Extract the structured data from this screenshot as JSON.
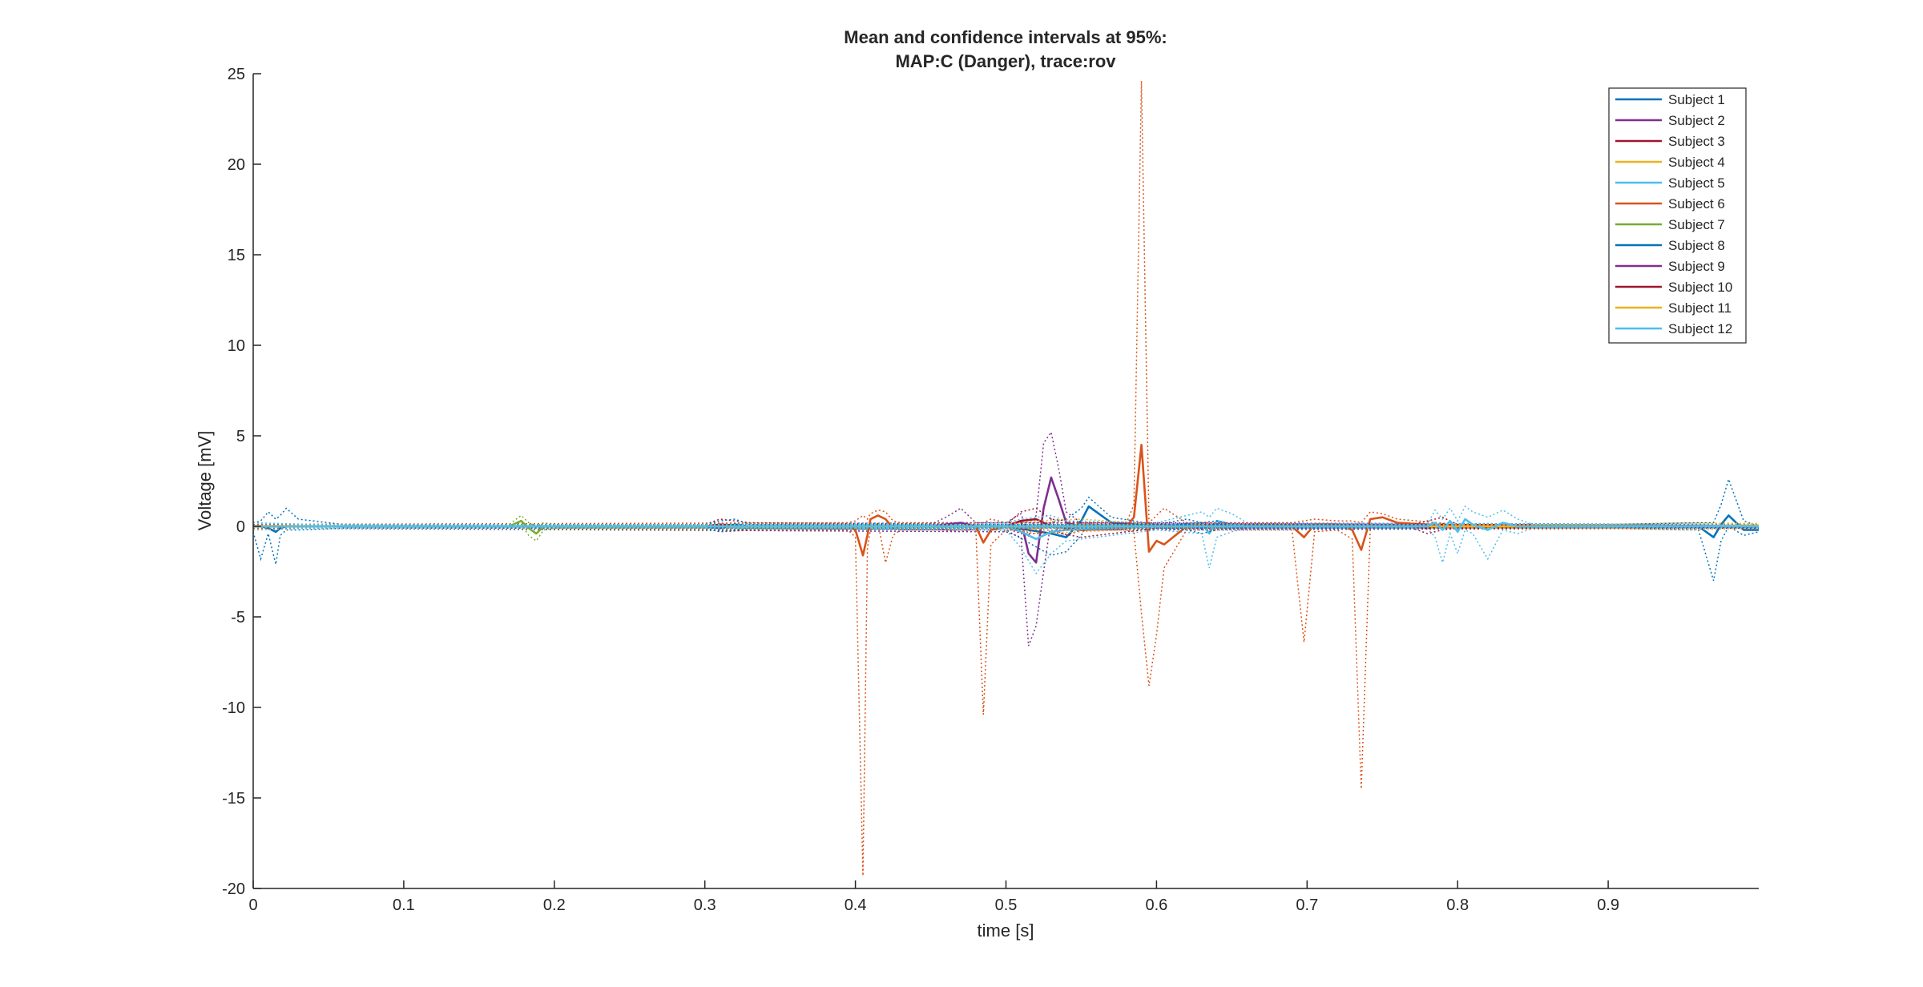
{
  "chart_data": {
    "type": "line",
    "title": "Mean and confidence intervals at 95%:",
    "subtitle": "MAP:C (Danger), trace:rov",
    "xlabel": "time [s]",
    "ylabel": "Voltage [mV]",
    "xlim": [
      0,
      1.0
    ],
    "ylim": [
      -20,
      25
    ],
    "xticks": [
      0,
      0.1,
      0.2,
      0.3,
      0.4,
      0.5,
      0.6,
      0.7,
      0.8,
      0.9
    ],
    "xtick_labels": [
      "0",
      "0.1",
      "0.2",
      "0.3",
      "0.4",
      "0.5",
      "0.6",
      "0.7",
      "0.8",
      "0.9"
    ],
    "yticks": [
      -20,
      -15,
      -10,
      -5,
      0,
      5,
      10,
      15,
      20,
      25
    ],
    "ytick_labels": [
      "-20",
      "-15",
      "-10",
      "-5",
      "0",
      "5",
      "10",
      "15",
      "20",
      "25"
    ],
    "grid": false,
    "legend_position": "top-right",
    "style_note": "solid lines = mean, dotted lines = 95% confidence bounds",
    "series": [
      {
        "name": "Subject 1",
        "color": "#0072BD",
        "x": [
          0,
          0.005,
          0.01,
          0.015,
          0.018,
          0.022,
          0.03,
          0.06,
          0.3,
          0.5,
          0.53,
          0.54,
          0.55,
          0.555,
          0.57,
          0.6,
          0.9,
          0.96,
          0.97,
          0.975,
          0.98,
          0.99,
          1.0
        ],
        "y": [
          0,
          0,
          -0.1,
          -0.3,
          -0.1,
          0,
          0,
          0,
          0,
          0,
          -0.4,
          -0.6,
          0.3,
          1.1,
          0.2,
          0,
          0,
          0,
          -0.6,
          0.1,
          0.6,
          -0.2,
          -0.2
        ],
        "upper": [
          0.2,
          0.3,
          0.8,
          0.4,
          0.6,
          1.0,
          0.4,
          0.1,
          0.1,
          0.2,
          0.2,
          0.4,
          1.0,
          1.6,
          0.5,
          0.1,
          0.1,
          0.2,
          0.2,
          1.2,
          2.6,
          0.3,
          0
        ],
        "lower": [
          -0.3,
          -1.8,
          -0.4,
          -2.1,
          -0.5,
          -0.2,
          -0.2,
          -0.1,
          -0.1,
          -0.2,
          -1.6,
          -1.4,
          -0.5,
          0.2,
          -0.2,
          -0.1,
          -0.1,
          -0.2,
          -3.0,
          -0.8,
          0,
          -0.5,
          -0.3
        ]
      },
      {
        "name": "Subject 2",
        "color": "#7E2F8E",
        "x": [
          0,
          0.5,
          0.51,
          0.515,
          0.52,
          0.525,
          0.53,
          0.535,
          0.54,
          0.55,
          1.0
        ],
        "y": [
          0,
          0,
          0.3,
          -1.5,
          -2.0,
          1.0,
          2.7,
          1.5,
          0.2,
          0,
          0
        ],
        "upper": [
          0.1,
          0.2,
          0.7,
          -0.5,
          0.6,
          4.6,
          5.2,
          3.2,
          0.8,
          0.2,
          0.1
        ],
        "lower": [
          -0.1,
          -0.3,
          -0.6,
          -6.6,
          -5.5,
          -2.5,
          0.4,
          -0.3,
          -0.5,
          -0.2,
          -0.1
        ]
      },
      {
        "name": "Subject 3",
        "color": "#A2142F",
        "x": [
          0,
          0.3,
          0.31,
          0.33,
          0.5,
          0.51,
          0.52,
          0.53,
          0.55,
          0.6,
          1.0
        ],
        "y": [
          0,
          0,
          0.1,
          0,
          0,
          0.3,
          0.4,
          0,
          -0.2,
          0,
          0
        ],
        "upper": [
          0.05,
          0.1,
          0.4,
          0.2,
          0.1,
          0.8,
          1.0,
          0.4,
          0.2,
          0.1,
          0.05
        ],
        "lower": [
          -0.05,
          -0.1,
          -0.3,
          -0.2,
          -0.1,
          -0.4,
          -0.4,
          -0.3,
          -0.6,
          -0.1,
          -0.05
        ]
      },
      {
        "name": "Subject 4",
        "color": "#EDB120",
        "x": [
          0,
          0.5,
          0.52,
          0.55,
          0.6,
          0.9,
          1.0
        ],
        "y": [
          0,
          0,
          -0.1,
          0.1,
          0,
          0,
          0.05
        ],
        "upper": [
          0.05,
          0.1,
          0.3,
          0.4,
          0.1,
          0.1,
          0.15
        ],
        "lower": [
          -0.05,
          -0.1,
          -0.4,
          -0.3,
          -0.1,
          -0.1,
          -0.05
        ]
      },
      {
        "name": "Subject 5",
        "color": "#4DBEEE",
        "x": [
          0,
          0.5,
          0.51,
          0.52,
          0.53,
          0.54,
          0.6,
          0.63,
          0.635,
          0.64,
          0.65,
          0.66,
          1.0
        ],
        "y": [
          0,
          0,
          -0.3,
          -0.7,
          -0.3,
          -0.2,
          0,
          0.2,
          -0.4,
          0.3,
          0.1,
          0,
          0
        ],
        "upper": [
          0.1,
          0.2,
          0.4,
          0.5,
          0.6,
          0.3,
          0.2,
          0.8,
          0.5,
          1.0,
          0.7,
          0.2,
          0.1
        ],
        "lower": [
          -0.1,
          -0.2,
          -1.2,
          -2.6,
          -1.5,
          -0.8,
          -0.2,
          -0.4,
          -2.3,
          -0.6,
          -0.3,
          -0.1,
          -0.1
        ]
      },
      {
        "name": "Subject 6",
        "color": "#D95319",
        "x": [
          0,
          0.395,
          0.4,
          0.405,
          0.408,
          0.41,
          0.415,
          0.42,
          0.425,
          0.43,
          0.48,
          0.485,
          0.49,
          0.5,
          0.58,
          0.585,
          0.59,
          0.595,
          0.6,
          0.605,
          0.62,
          0.69,
          0.698,
          0.705,
          0.72,
          0.73,
          0.736,
          0.742,
          0.75,
          0.76,
          0.8,
          1.0
        ],
        "y": [
          0,
          0,
          -0.2,
          -1.6,
          -0.5,
          0.4,
          0.6,
          0.4,
          -0.1,
          0,
          0,
          -0.9,
          -0.2,
          0,
          0,
          0.5,
          4.5,
          -1.4,
          -0.8,
          -1.0,
          0,
          0,
          -0.6,
          0.1,
          0.1,
          -0.2,
          -1.3,
          0.4,
          0.5,
          0.2,
          0,
          0
        ],
        "upper": [
          0.1,
          0.2,
          0.3,
          0.6,
          0.4,
          0.7,
          0.9,
          0.8,
          0.3,
          0.2,
          0.2,
          0.2,
          0.4,
          0.2,
          0.2,
          1.2,
          24.6,
          0.2,
          0.6,
          1.0,
          0.2,
          0.2,
          0.3,
          0.4,
          0.3,
          0.3,
          0.2,
          0.8,
          0.7,
          0.4,
          0.1,
          0.05
        ],
        "lower": [
          -0.1,
          -0.2,
          -0.6,
          -19.3,
          -1.2,
          -0.2,
          0.2,
          -2.0,
          -0.5,
          -0.2,
          -0.2,
          -10.4,
          -1.0,
          -0.2,
          -0.2,
          -0.3,
          -4.8,
          -8.8,
          -6.0,
          -2.3,
          -0.2,
          -0.2,
          -6.4,
          -0.3,
          -0.2,
          -0.7,
          -14.5,
          -0.1,
          0.1,
          -0.1,
          -0.1,
          -0.05
        ]
      },
      {
        "name": "Subject 7",
        "color": "#77AC30",
        "x": [
          0,
          0.17,
          0.178,
          0.183,
          0.188,
          0.193,
          0.2,
          1.0
        ],
        "y": [
          0,
          0,
          0.3,
          -0.1,
          -0.4,
          0,
          0,
          0
        ],
        "upper": [
          0.05,
          0.1,
          0.6,
          0.2,
          0,
          0.2,
          0.1,
          0.05
        ],
        "lower": [
          -0.05,
          -0.1,
          0.1,
          -0.5,
          -0.8,
          -0.2,
          -0.1,
          -0.05
        ]
      },
      {
        "name": "Subject 8",
        "color": "#0072BD",
        "x": [
          0,
          0.3,
          0.31,
          0.32,
          0.33,
          0.6,
          0.62,
          0.63,
          0.64,
          0.65,
          1.0
        ],
        "y": [
          0,
          0,
          -0.1,
          0.1,
          0,
          0,
          0.1,
          -0.1,
          0.1,
          0,
          0
        ],
        "upper": [
          0.05,
          0.1,
          0.3,
          0.4,
          0.1,
          0.1,
          0.4,
          0.2,
          0.3,
          0.1,
          0.05
        ],
        "lower": [
          -0.05,
          -0.1,
          -0.3,
          -0.2,
          -0.1,
          -0.1,
          -0.2,
          -0.4,
          -0.2,
          -0.1,
          -0.05
        ]
      },
      {
        "name": "Subject 9",
        "color": "#7E2F8E",
        "x": [
          0,
          0.45,
          0.46,
          0.47,
          0.48,
          1.0
        ],
        "y": [
          0,
          0,
          0.1,
          0.2,
          0,
          0
        ],
        "upper": [
          0.05,
          0.1,
          0.5,
          1.0,
          0.2,
          0.05
        ],
        "lower": [
          -0.05,
          -0.1,
          -0.2,
          -0.3,
          -0.1,
          -0.05
        ]
      },
      {
        "name": "Subject 10",
        "color": "#A2142F",
        "x": [
          0,
          0.77,
          0.78,
          0.79,
          0.8,
          1.0
        ],
        "y": [
          0,
          0,
          -0.1,
          0.1,
          0,
          0
        ],
        "upper": [
          0.05,
          0.1,
          0.3,
          0.5,
          0.1,
          0.05
        ],
        "lower": [
          -0.05,
          -0.1,
          -0.4,
          -0.2,
          -0.1,
          -0.05
        ]
      },
      {
        "name": "Subject 11",
        "color": "#EDB120",
        "x": [
          0,
          0.9,
          0.95,
          1.0
        ],
        "y": [
          0,
          0,
          0,
          0.05
        ],
        "upper": [
          0.05,
          0.1,
          0.2,
          0.15
        ],
        "lower": [
          -0.05,
          -0.1,
          -0.2,
          -0.1
        ]
      },
      {
        "name": "Subject 12",
        "color": "#4DBEEE",
        "x": [
          0,
          0.04,
          0.05,
          0.78,
          0.785,
          0.79,
          0.795,
          0.8,
          0.805,
          0.81,
          0.82,
          0.83,
          0.84,
          0.85,
          1.0
        ],
        "y": [
          0,
          0,
          0,
          0,
          0.2,
          -0.2,
          0.3,
          -0.3,
          0.4,
          0.1,
          -0.2,
          0.2,
          0,
          0,
          0
        ],
        "upper": [
          0.2,
          0.1,
          0.1,
          0.1,
          0.9,
          0.4,
          1.0,
          0.3,
          1.1,
          0.8,
          0.5,
          0.9,
          0.4,
          0.1,
          0.05
        ],
        "lower": [
          -0.2,
          -0.1,
          -0.1,
          -0.1,
          -0.6,
          -2.0,
          -0.4,
          -1.5,
          -0.2,
          -0.4,
          -1.8,
          -0.2,
          -0.4,
          -0.1,
          -0.05
        ]
      }
    ]
  }
}
